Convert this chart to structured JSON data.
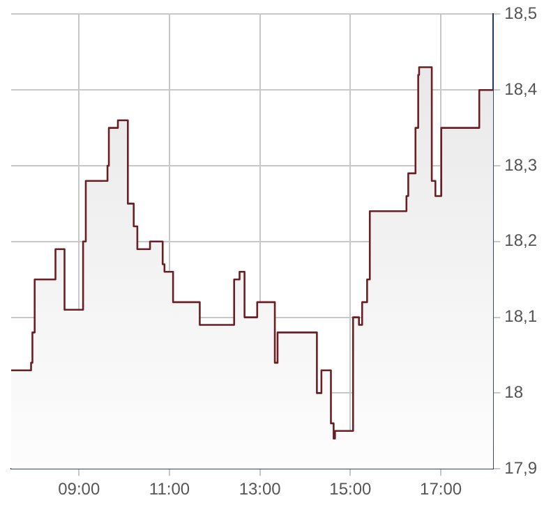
{
  "chart_data": {
    "type": "area",
    "color": "#6b1f24",
    "x": [
      7.5,
      7.94,
      7.94,
      7.97,
      7.97,
      8.02,
      8.02,
      8.48,
      8.48,
      8.68,
      8.68,
      9.09,
      9.09,
      9.15,
      9.15,
      9.63,
      9.63,
      9.66,
      9.66,
      9.86,
      9.86,
      10.08,
      10.08,
      10.21,
      10.21,
      10.29,
      10.29,
      10.57,
      10.57,
      10.85,
      10.85,
      10.89,
      10.89,
      11.08,
      11.08,
      11.67,
      11.67,
      12.43,
      12.43,
      12.55,
      12.55,
      12.66,
      12.66,
      12.94,
      12.94,
      13.33,
      13.33,
      13.39,
      13.39,
      14.26,
      14.26,
      14.36,
      14.36,
      14.57,
      14.57,
      14.63,
      14.63,
      14.66,
      14.66,
      15.06,
      15.06,
      15.19,
      15.19,
      15.26,
      15.26,
      15.37,
      15.37,
      15.43,
      15.43,
      16.24,
      16.24,
      16.28,
      16.28,
      16.44,
      16.44,
      16.5,
      16.5,
      16.52,
      16.52,
      16.8,
      16.8,
      16.88,
      16.88,
      17.01,
      17.01,
      17.85,
      17.85,
      18.16
    ],
    "values": [
      18.03,
      18.03,
      18.04,
      18.04,
      18.08,
      18.08,
      18.15,
      18.15,
      18.19,
      18.19,
      18.11,
      18.11,
      18.2,
      18.2,
      18.28,
      18.28,
      18.3,
      18.3,
      18.35,
      18.35,
      18.36,
      18.36,
      18.25,
      18.25,
      18.22,
      18.22,
      18.19,
      18.19,
      18.2,
      18.2,
      18.17,
      18.17,
      18.16,
      18.16,
      18.12,
      18.12,
      18.09,
      18.09,
      18.15,
      18.15,
      18.16,
      18.16,
      18.1,
      18.1,
      18.12,
      18.12,
      18.04,
      18.04,
      18.08,
      18.08,
      18.0,
      18.0,
      18.03,
      18.03,
      17.96,
      17.96,
      17.94,
      17.94,
      17.95,
      17.95,
      18.1,
      18.1,
      18.09,
      18.09,
      18.12,
      18.12,
      18.15,
      18.15,
      18.24,
      18.24,
      18.26,
      18.26,
      18.29,
      18.29,
      18.35,
      18.35,
      18.42,
      18.42,
      18.43,
      18.43,
      18.28,
      18.28,
      18.26,
      18.26,
      18.35,
      18.35,
      18.4,
      18.4
    ],
    "xlim": [
      7.5,
      18.16
    ],
    "xticks": [
      {
        "value": 9,
        "label": "09:00"
      },
      {
        "value": 11,
        "label": "11:00"
      },
      {
        "value": 13,
        "label": "13:00"
      },
      {
        "value": 15,
        "label": "15:00"
      },
      {
        "value": 17,
        "label": "17:00"
      }
    ],
    "ylim": [
      17.9,
      18.5
    ],
    "yticks": [
      {
        "value": 17.9,
        "label": "17,9"
      },
      18,
      {
        "value": 18.1,
        "label": "18,1"
      },
      {
        "value": 18.2,
        "label": "18,2"
      },
      {
        "value": 18.3,
        "label": "18,3"
      },
      {
        "value": 18.4,
        "label": "18,4"
      },
      {
        "value": 18.5,
        "label": "18,5"
      }
    ],
    "grid": true,
    "legend": false,
    "marker": "none",
    "line_style": "solid"
  }
}
